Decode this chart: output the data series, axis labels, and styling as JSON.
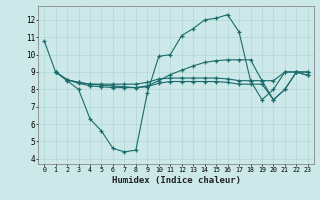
{
  "xlabel": "Humidex (Indice chaleur)",
  "bg_color": "#cce8e8",
  "line_color": "#1a6b6b",
  "xlim": [
    -0.5,
    23.5
  ],
  "ylim": [
    3.7,
    12.8
  ],
  "xticks": [
    0,
    1,
    2,
    3,
    4,
    5,
    6,
    7,
    8,
    9,
    10,
    11,
    12,
    13,
    14,
    15,
    16,
    17,
    18,
    19,
    20,
    21,
    22,
    23
  ],
  "yticks": [
    4,
    5,
    6,
    7,
    8,
    9,
    10,
    11,
    12
  ],
  "line1_x": [
    0,
    1,
    2,
    3,
    4,
    5,
    6,
    7,
    8,
    9,
    10,
    11,
    12,
    13,
    14,
    15,
    16,
    17,
    18,
    19,
    20,
    21,
    22,
    23
  ],
  "line1_y": [
    10.8,
    9.0,
    8.5,
    8.0,
    6.3,
    5.6,
    4.6,
    4.4,
    4.5,
    7.8,
    9.9,
    10.0,
    11.1,
    11.5,
    12.0,
    12.1,
    12.3,
    11.3,
    8.5,
    7.4,
    8.0,
    9.0,
    9.0,
    8.8
  ],
  "line2_x": [
    1,
    2,
    3,
    4,
    5,
    6,
    7,
    8,
    9,
    10,
    11,
    12,
    13,
    14,
    15,
    16,
    17,
    18,
    19,
    20,
    21,
    22,
    23
  ],
  "line2_y": [
    9.0,
    8.55,
    8.4,
    8.3,
    8.3,
    8.3,
    8.3,
    8.3,
    8.4,
    8.6,
    8.65,
    8.65,
    8.65,
    8.65,
    8.65,
    8.6,
    8.5,
    8.5,
    8.5,
    8.5,
    9.0,
    9.0,
    9.0
  ],
  "line3_x": [
    1,
    2,
    3,
    4,
    5,
    6,
    7,
    8,
    9,
    10,
    11,
    12,
    13,
    14,
    15,
    16,
    17,
    18,
    19,
    20,
    21,
    22,
    23
  ],
  "line3_y": [
    9.0,
    8.55,
    8.35,
    8.2,
    8.15,
    8.1,
    8.1,
    8.1,
    8.15,
    8.35,
    8.45,
    8.45,
    8.45,
    8.45,
    8.45,
    8.4,
    8.3,
    8.3,
    8.3,
    7.4,
    8.0,
    9.0,
    8.8
  ],
  "line4_x": [
    1,
    2,
    3,
    4,
    5,
    6,
    7,
    8,
    9,
    10,
    11,
    12,
    13,
    14,
    15,
    16,
    17,
    18,
    19,
    20,
    21,
    22,
    23
  ],
  "line4_y": [
    9.0,
    8.55,
    8.4,
    8.3,
    8.25,
    8.2,
    8.15,
    8.1,
    8.2,
    8.5,
    8.85,
    9.1,
    9.35,
    9.55,
    9.65,
    9.7,
    9.7,
    9.7,
    8.5,
    7.4,
    8.0,
    9.0,
    9.0
  ]
}
